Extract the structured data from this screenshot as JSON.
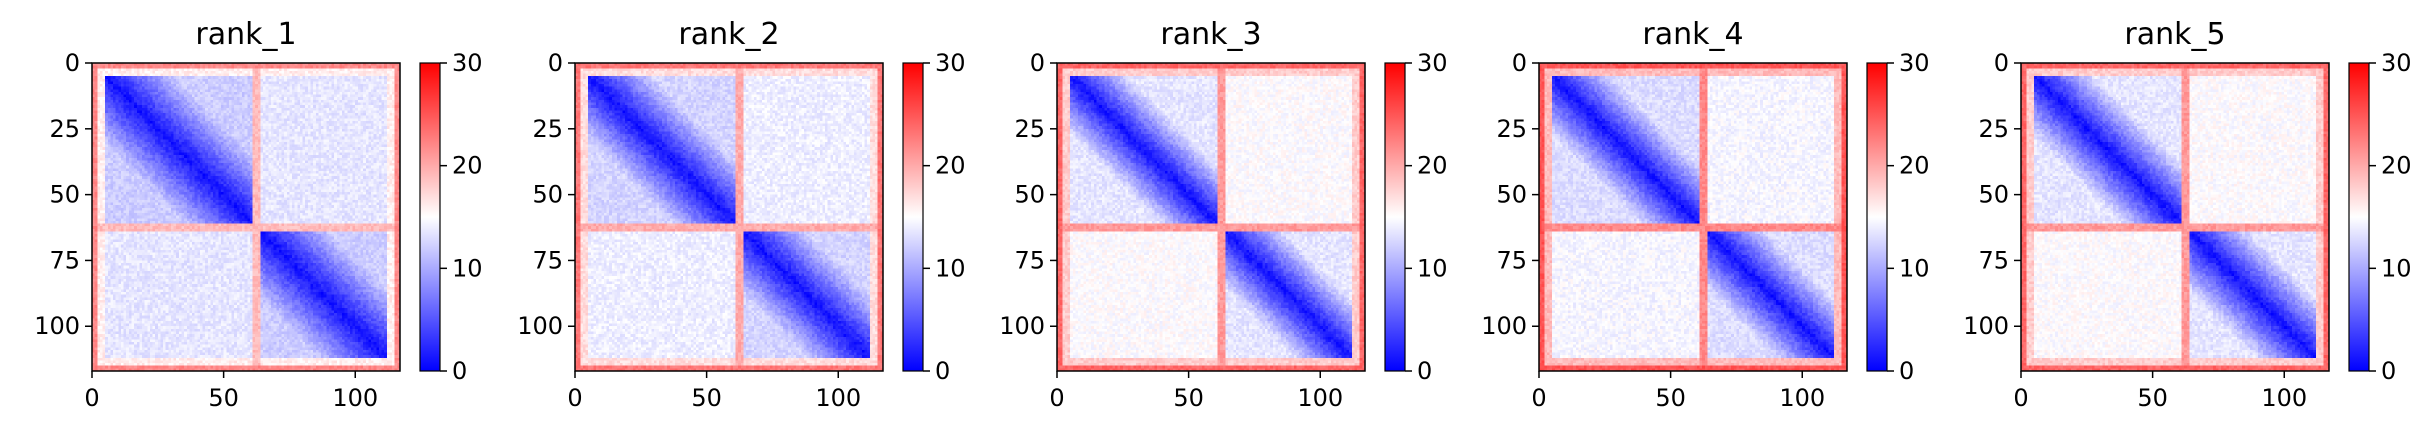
{
  "chart_data": {
    "type": "heatmap",
    "size": 117,
    "x_ticks": [
      0,
      50,
      100
    ],
    "y_ticks": [
      0,
      25,
      50,
      75,
      100
    ],
    "xlim": [
      0,
      117
    ],
    "ylim": [
      117,
      0
    ],
    "colormap": {
      "name": "bwr",
      "low": "#0000ff",
      "mid": "#ffffff",
      "high": "#ff0000"
    },
    "color_range": [
      0,
      30
    ],
    "colorbar_ticks": [
      0,
      10,
      20,
      30
    ],
    "panels": [
      {
        "title": "rank_1",
        "domain_boundary": 62,
        "inter_domain_level": 12.0,
        "diagonal_band": 26,
        "edge_level": 22
      },
      {
        "title": "rank_2",
        "domain_boundary": 62,
        "inter_domain_level": 12.5,
        "diagonal_band": 24,
        "edge_level": 23
      },
      {
        "title": "rank_3",
        "domain_boundary": 62,
        "inter_domain_level": 13.5,
        "diagonal_band": 22,
        "edge_level": 24
      },
      {
        "title": "rank_4",
        "domain_boundary": 62,
        "inter_domain_level": 13.0,
        "diagonal_band": 22,
        "edge_level": 25
      },
      {
        "title": "rank_5",
        "domain_boundary": 62,
        "inter_domain_level": 13.5,
        "diagonal_band": 23,
        "edge_level": 24
      }
    ]
  }
}
